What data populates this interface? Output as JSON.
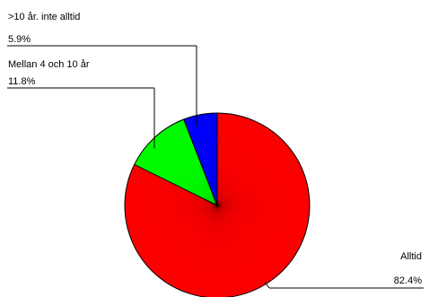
{
  "chart_data": {
    "type": "pie",
    "title": "",
    "slices": [
      {
        "label": "Alltid",
        "value": 82.4,
        "value_label": "82.4%",
        "color": "#ff0000"
      },
      {
        "label": "Mellan 4 och 10 år",
        "value": 11.8,
        "value_label": "11.8%",
        "color": "#00ff00"
      },
      {
        "label": ">10 år. inte alltid",
        "value": 5.9,
        "value_label": "5.9%",
        "color": "#0000ff"
      }
    ],
    "legend": "none",
    "labels_placement": "outside-with-leader-lines"
  }
}
